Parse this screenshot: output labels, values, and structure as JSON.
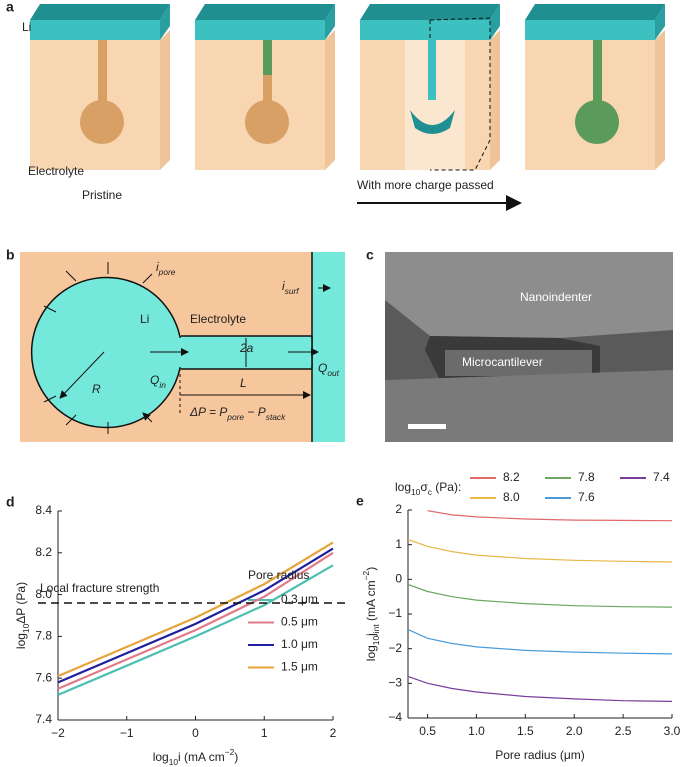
{
  "figure": {
    "a": {
      "label": "a",
      "li": "Li",
      "electrolyte": "Electrolyte",
      "pristine": "Pristine",
      "arrow_text": "With more charge passed"
    },
    "b": {
      "label": "b",
      "i_pore": [
        "i",
        {
          "text": "pore",
          "script": "sub"
        }
      ],
      "i_surf": [
        "i",
        {
          "text": "surf",
          "script": "sub"
        }
      ],
      "li": "Li",
      "electrolyte": "Electrolyte",
      "two_a": "2a",
      "q_in": [
        "Q",
        {
          "text": "in",
          "script": "sub"
        }
      ],
      "q_out": [
        "Q",
        {
          "text": "out",
          "script": "sub"
        }
      ],
      "r": "R",
      "l": "L",
      "delta_p": [
        "ΔP = P",
        {
          "text": "pore",
          "script": "sub"
        },
        " − P",
        {
          "text": "stack",
          "script": "sub"
        }
      ]
    },
    "c": {
      "label": "c",
      "nanoindenter": "Nanoindenter",
      "microcantilever": "Microcantilever"
    }
  },
  "chart_data": [
    {
      "type": "line",
      "panel_label": "d",
      "x_label": [
        "log",
        {
          "text": "10",
          "script": "sub"
        },
        "i (mA cm",
        {
          "text": "−2",
          "script": "sup"
        },
        ")"
      ],
      "y_label": [
        "log",
        {
          "text": "10",
          "script": "sub"
        },
        "ΔP (Pa)"
      ],
      "x": [
        -2,
        -1,
        0,
        1,
        2
      ],
      "xlim": [
        -2,
        2
      ],
      "xticks": [
        {
          "value": -2,
          "label": "−2"
        },
        {
          "value": -1,
          "label": "−1"
        },
        0,
        1,
        2
      ],
      "ylim": [
        7.4,
        8.4
      ],
      "yticks": [
        7.4,
        7.6,
        7.8,
        {
          "value": 8.0,
          "label": "8.0"
        },
        8.2,
        8.4
      ],
      "legend_title": "Pore radius",
      "series": [
        {
          "name": "0.3 μm",
          "color": "#4dbfb0",
          "values": [
            7.52,
            7.66,
            7.8,
            7.95,
            8.14
          ]
        },
        {
          "name": "0.5 μm",
          "color": "#e07b8a",
          "values": [
            7.55,
            7.69,
            7.83,
            7.99,
            8.2
          ]
        },
        {
          "name": "1.0 μm",
          "color": "#1f1f9e",
          "values": [
            7.58,
            7.72,
            7.86,
            8.02,
            8.22
          ]
        },
        {
          "name": "1.5 μm",
          "color": "#e8a33a",
          "values": [
            7.61,
            7.75,
            7.89,
            8.05,
            8.25
          ]
        }
      ],
      "annotations": [
        {
          "text": "Local fracture strength",
          "y": 7.96
        }
      ]
    },
    {
      "type": "line",
      "panel_label": "e",
      "x_label": "Pore radius (μm)",
      "y_label": [
        "log",
        {
          "text": "10",
          "script": "sub"
        },
        "j",
        {
          "text": "int",
          "script": "sub"
        },
        " (mA cm",
        {
          "text": "−2",
          "script": "sup"
        },
        ")"
      ],
      "x": [
        0.3,
        0.5,
        0.75,
        1.0,
        1.5,
        2.0,
        2.5,
        3.0
      ],
      "xlim": [
        0.3,
        3.0
      ],
      "xticks": [
        0.5,
        {
          "value": 1.0,
          "label": "1.0"
        },
        1.5,
        {
          "value": 2.0,
          "label": "2.0"
        },
        2.5,
        {
          "value": 3.0,
          "label": "3.0"
        }
      ],
      "ylim": [
        -4,
        2
      ],
      "yticks": [
        {
          "value": -4,
          "label": "−4"
        },
        {
          "value": -3,
          "label": "−3"
        },
        {
          "value": -2,
          "label": "−2"
        },
        {
          "value": -1,
          "label": "−1"
        },
        0,
        1,
        2
      ],
      "legend_title": [
        "log",
        {
          "text": "10",
          "script": "sub"
        },
        "σ",
        {
          "text": "c",
          "script": "sub"
        },
        " (Pa):"
      ],
      "series": [
        {
          "name": "8.2",
          "color": "#e06a6a",
          "values": [
            null,
            1.98,
            1.86,
            1.8,
            1.74,
            1.71,
            1.7,
            1.69
          ]
        },
        {
          "name": "8.0",
          "color": "#e8b84a",
          "values": [
            1.15,
            0.95,
            0.8,
            0.7,
            0.6,
            0.55,
            0.52,
            0.5
          ]
        },
        {
          "name": "7.8",
          "color": "#6aa860",
          "values": [
            -0.15,
            -0.35,
            -0.5,
            -0.6,
            -0.7,
            -0.76,
            -0.79,
            -0.8
          ]
        },
        {
          "name": "7.6",
          "color": "#4b9bd8",
          "values": [
            -1.45,
            -1.7,
            -1.85,
            -1.95,
            -2.05,
            -2.1,
            -2.13,
            -2.15
          ]
        },
        {
          "name": "7.4",
          "color": "#7a3d9e",
          "values": [
            -2.8,
            -3.0,
            -3.15,
            -3.25,
            -3.38,
            -3.45,
            -3.5,
            -3.52
          ]
        }
      ]
    }
  ]
}
